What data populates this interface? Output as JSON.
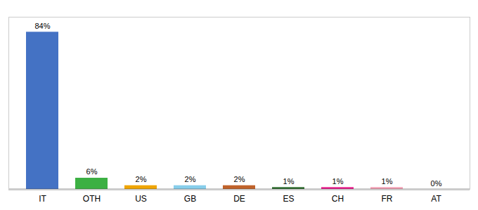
{
  "chart_data": {
    "type": "bar",
    "categories": [
      "IT",
      "OTH",
      "US",
      "GB",
      "DE",
      "ES",
      "CH",
      "FR",
      "AT"
    ],
    "values": [
      84,
      6,
      2,
      2,
      2,
      1,
      1,
      1,
      0
    ],
    "value_labels": [
      "84%",
      "6%",
      "2%",
      "2%",
      "2%",
      "1%",
      "1%",
      "1%",
      "0%"
    ],
    "colors": [
      "#4472c4",
      "#3cb043",
      "#f0a500",
      "#87ceeb",
      "#c0622a",
      "#2e6b2e",
      "#e91e8c",
      "#f4a0b5",
      "#dddddd"
    ],
    "ylim": [
      0,
      92
    ],
    "data_labels": true,
    "tick_labels": "x"
  }
}
